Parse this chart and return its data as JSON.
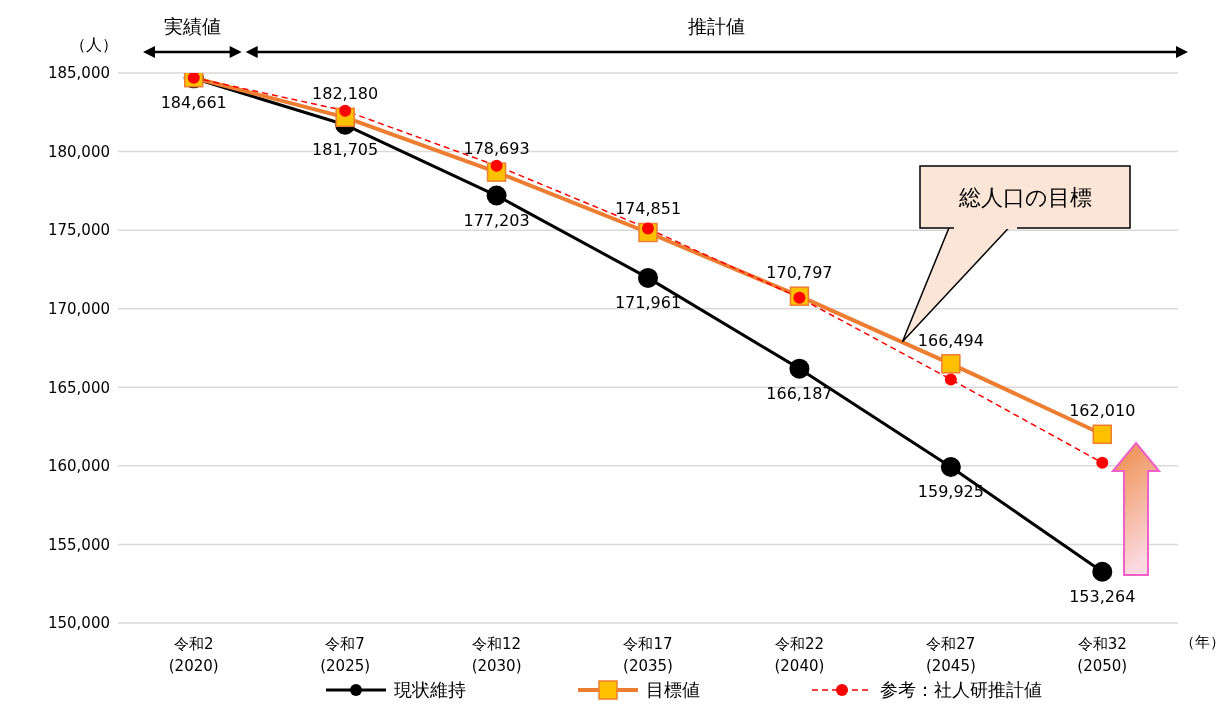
{
  "chart_data": {
    "type": "line",
    "categories": [
      "令和2\n(2020)",
      "令和7\n(2025)",
      "令和12\n(2030)",
      "令和17\n(2035)",
      "令和22\n(2040)",
      "令和27\n(2045)",
      "令和32\n(2050)"
    ],
    "ylabel": "（人）",
    "xlabel": "（年）",
    "ylim": [
      150000,
      185000
    ],
    "yticks": [
      {
        "value": 150000,
        "label": "150,000"
      },
      {
        "value": 155000,
        "label": "155,000"
      },
      {
        "value": 160000,
        "label": "160,000"
      },
      {
        "value": 165000,
        "label": "165,000"
      },
      {
        "value": 170000,
        "label": "170,000"
      },
      {
        "value": 175000,
        "label": "175,000"
      },
      {
        "value": 180000,
        "label": "180,000"
      },
      {
        "value": 185000,
        "label": "185,000"
      }
    ],
    "grid": "y",
    "legend": "bottom",
    "annotations": [
      "実績値",
      "推計値",
      "総人口の目標"
    ],
    "series": [
      {
        "name": "現状維持",
        "color": "#000000",
        "marker": "circle",
        "line_style": "solid",
        "values": [
          184661,
          181705,
          177203,
          171961,
          166187,
          159925,
          153264
        ],
        "value_labels": [
          "184,661",
          "181,705",
          "177,203",
          "171,961",
          "166,187",
          "159,925",
          "153,264"
        ]
      },
      {
        "name": "目標値",
        "color": "#ed7d31",
        "marker": "square",
        "line_style": "solid",
        "values": [
          184700,
          182180,
          178693,
          174851,
          170797,
          166494,
          162010
        ],
        "value_labels": [
          null,
          "182,180",
          "178,693",
          "174,851",
          "170,797",
          "166,494",
          "162,010"
        ]
      },
      {
        "name": "参考：社人研推計値",
        "color": "#ff0000",
        "marker": "circle",
        "line_style": "dashed",
        "values": [
          184700,
          182600,
          179100,
          175100,
          170700,
          165500,
          160200
        ]
      }
    ]
  }
}
